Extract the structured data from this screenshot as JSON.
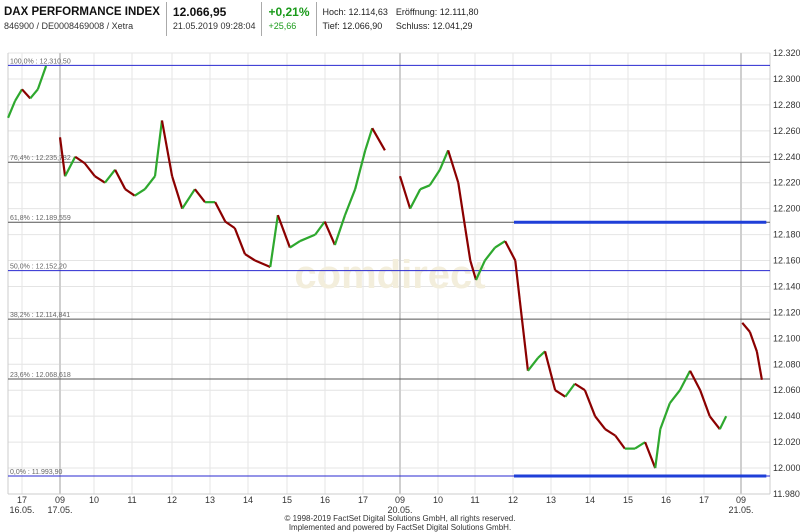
{
  "header": {
    "title": "DAX PERFORMANCE INDEX",
    "identifier": "846900 / DE0008469008 / Xetra",
    "last_price": "12.066,95",
    "timestamp": "21.05.2019 09:28:04",
    "change_pct": "+0,21%",
    "change_abs": "+25,66",
    "high": "Hoch: 12.114,63",
    "open": "Eröffnung: 12.111,80",
    "low": "Tief: 12.066,90",
    "close": "Schluss: 12.041,29"
  },
  "footer": {
    "line1": "© 1998-2019 FactSet Digital Solutions GmbH, all rights reserved.",
    "line2": "Implemented and powered by FactSet Digital Solutions GmbH."
  },
  "watermark": "comdirect",
  "chart_data": {
    "type": "line",
    "colors": {
      "up": "#2ea82e",
      "down": "#8b0000",
      "fib_blue": "#2a2ad0",
      "fib_gray": "#555555",
      "support": "#1f3fd8"
    },
    "ylim": [
      11980,
      12320
    ],
    "y_ticks": [
      "12.320",
      "12.300",
      "12.280",
      "12.260",
      "12.240",
      "12.220",
      "12.200",
      "12.180",
      "12.160",
      "12.140",
      "12.120",
      "12.100",
      "12.080",
      "12.060",
      "12.040",
      "12.020",
      "12.000",
      "11.980"
    ],
    "x_ticks": [
      {
        "hour": "17",
        "date": "16.05."
      },
      {
        "hour": "09",
        "date": "17.05."
      },
      {
        "hour": "10"
      },
      {
        "hour": "11"
      },
      {
        "hour": "12"
      },
      {
        "hour": "13"
      },
      {
        "hour": "14"
      },
      {
        "hour": "15"
      },
      {
        "hour": "16"
      },
      {
        "hour": "17"
      },
      {
        "hour": "09",
        "date": "20.05."
      },
      {
        "hour": "10"
      },
      {
        "hour": "11"
      },
      {
        "hour": "12"
      },
      {
        "hour": "13"
      },
      {
        "hour": "14"
      },
      {
        "hour": "15"
      },
      {
        "hour": "16"
      },
      {
        "hour": "17"
      },
      {
        "hour": "09",
        "date": "21.05."
      }
    ],
    "grid": true,
    "fib_levels": [
      {
        "label": "100,0% : 12.310,50",
        "value": 12310.5,
        "style": "blue"
      },
      {
        "label": "76,4% : 12.235,782",
        "value": 12235.782,
        "style": "gray"
      },
      {
        "label": "61,8% : 12.189,559",
        "value": 12189.559,
        "style": "gray"
      },
      {
        "label": "50,0% : 12.152,20",
        "value": 12152.2,
        "style": "blue"
      },
      {
        "label": "38,2% : 12.114,841",
        "value": 12114.841,
        "style": "gray"
      },
      {
        "label": "23,6% : 12.068,618",
        "value": 12068.618,
        "style": "gray"
      },
      {
        "label": "0,0% : 11.993,90",
        "value": 11993.9,
        "style": "blue"
      }
    ],
    "support_lines": [
      {
        "value": 12189.559,
        "from": "20.05. 12:00",
        "to": "21.05. 09:40"
      },
      {
        "value": 11993.9,
        "from": "20.05. 12:00",
        "to": "21.05. 09:40"
      }
    ],
    "sessions": [
      {
        "date": "16.05.",
        "points": [
          [
            "16:38",
            12270
          ],
          [
            "16:49",
            12283
          ],
          [
            "17:00",
            12292
          ],
          [
            "17:13",
            12285
          ],
          [
            "17:25",
            12292
          ],
          [
            "17:38",
            12310
          ]
        ]
      },
      {
        "date": "17.05.",
        "points": [
          [
            "09:00",
            12255
          ],
          [
            "09:08",
            12225
          ],
          [
            "09:24",
            12240
          ],
          [
            "09:39",
            12235
          ],
          [
            "09:55",
            12225
          ],
          [
            "10:11",
            12220
          ],
          [
            "10:27",
            12230
          ],
          [
            "10:43",
            12215
          ],
          [
            "10:58",
            12210
          ],
          [
            "11:14",
            12215
          ],
          [
            "11:30",
            12225
          ],
          [
            "11:41",
            12268
          ],
          [
            "11:57",
            12225
          ],
          [
            "12:13",
            12200
          ],
          [
            "12:33",
            12215
          ],
          [
            "12:49",
            12205
          ],
          [
            "13:05",
            12205
          ],
          [
            "13:21",
            12190
          ],
          [
            "13:36",
            12185
          ],
          [
            "13:52",
            12165
          ],
          [
            "14:08",
            12160
          ],
          [
            "14:32",
            12155
          ],
          [
            "14:44",
            12195
          ],
          [
            "15:03",
            12170
          ],
          [
            "15:19",
            12175
          ],
          [
            "15:43",
            12180
          ],
          [
            "15:58",
            12190
          ],
          [
            "16:14",
            12172
          ],
          [
            "16:30",
            12195
          ],
          [
            "16:46",
            12215
          ],
          [
            "17:02",
            12245
          ],
          [
            "17:13",
            12262
          ],
          [
            "17:33",
            12245
          ]
        ]
      },
      {
        "date": "20.05.",
        "points": [
          [
            "09:00",
            12225
          ],
          [
            "09:16",
            12200
          ],
          [
            "09:32",
            12215
          ],
          [
            "09:47",
            12218
          ],
          [
            "10:03",
            12230
          ],
          [
            "10:16",
            12245
          ],
          [
            "10:32",
            12220
          ],
          [
            "10:43",
            12185
          ],
          [
            "10:51",
            12160
          ],
          [
            "11:00",
            12145
          ],
          [
            "11:14",
            12160
          ],
          [
            "11:30",
            12170
          ],
          [
            "11:46",
            12175
          ],
          [
            "12:02",
            12160
          ],
          [
            "12:09",
            12130
          ],
          [
            "12:22",
            12075
          ],
          [
            "12:38",
            12085
          ],
          [
            "12:49",
            12090
          ],
          [
            "13:05",
            12060
          ],
          [
            "13:21",
            12055
          ],
          [
            "13:36",
            12065
          ],
          [
            "13:52",
            12060
          ],
          [
            "14:08",
            12040
          ],
          [
            "14:24",
            12030
          ],
          [
            "14:40",
            12025
          ],
          [
            "14:55",
            12015
          ],
          [
            "15:11",
            12015
          ],
          [
            "15:27",
            12020
          ],
          [
            "15:43",
            12000
          ],
          [
            "15:51",
            12030
          ],
          [
            "16:06",
            12050
          ],
          [
            "16:22",
            12060
          ],
          [
            "16:38",
            12075
          ],
          [
            "16:54",
            12060
          ],
          [
            "17:09",
            12040
          ],
          [
            "17:25",
            12030
          ],
          [
            "17:35",
            12040
          ]
        ]
      },
      {
        "date": "21.05.",
        "points": [
          [
            "09:02",
            12112
          ],
          [
            "09:14",
            12105
          ],
          [
            "09:25",
            12090
          ],
          [
            "09:33",
            12068
          ]
        ]
      }
    ]
  }
}
